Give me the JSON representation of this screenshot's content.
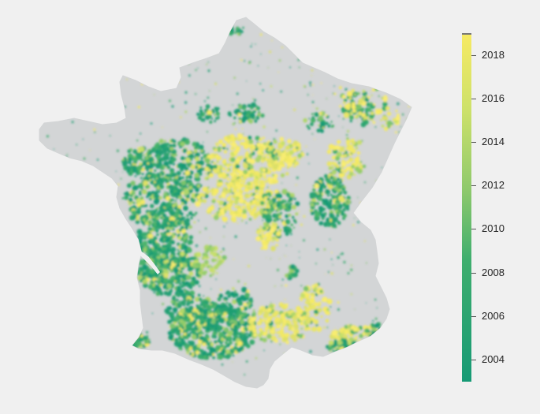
{
  "map": {
    "region": "France",
    "land_color": "#d3d5d6",
    "background_color": "#f0f0f0",
    "color_scale": {
      "min_year": 2003,
      "max_year": 2019,
      "low_color": "#169a75",
      "mid_color": "#74bf6e",
      "high_color": "#f5e865"
    }
  },
  "legend": {
    "ticks": [
      {
        "label": "2018",
        "year": 2018
      },
      {
        "label": "2016",
        "year": 2016
      },
      {
        "label": "2014",
        "year": 2014
      },
      {
        "label": "2012",
        "year": 2012
      },
      {
        "label": "2010",
        "year": 2010
      },
      {
        "label": "2008",
        "year": 2008
      },
      {
        "label": "2006",
        "year": 2006
      },
      {
        "label": "2004",
        "year": 2004
      }
    ]
  }
}
